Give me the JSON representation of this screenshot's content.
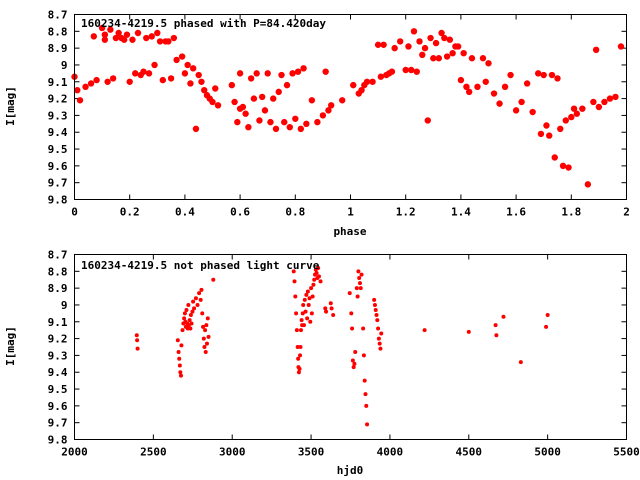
{
  "chart_data": [
    {
      "type": "scatter",
      "title": "160234-4219.5 phased with P=84.420day",
      "xlabel": "phase",
      "ylabel": "I[mag]",
      "xlim": [
        0,
        2
      ],
      "ylim": [
        9.8,
        8.7
      ],
      "y_inverted": true,
      "grid": false,
      "color": "#ff0000",
      "x_ticks": [
        "0",
        "0.2",
        "0.4",
        "0.6",
        "0.8",
        "1",
        "1.2",
        "1.4",
        "1.6",
        "1.8",
        "2"
      ],
      "y_ticks": [
        "8.7",
        "8.8",
        "8.9",
        "9",
        "9.1",
        "9.2",
        "9.3",
        "9.4",
        "9.5",
        "9.6",
        "9.7",
        "9.8"
      ],
      "points": [
        [
          0.0,
          9.07
        ],
        [
          0.01,
          9.15
        ],
        [
          0.02,
          9.21
        ],
        [
          0.04,
          9.13
        ],
        [
          0.06,
          9.11
        ],
        [
          0.07,
          8.83
        ],
        [
          0.08,
          9.09
        ],
        [
          0.1,
          8.78
        ],
        [
          0.11,
          8.82
        ],
        [
          0.11,
          8.85
        ],
        [
          0.12,
          9.1
        ],
        [
          0.13,
          8.79
        ],
        [
          0.14,
          9.08
        ],
        [
          0.15,
          8.84
        ],
        [
          0.16,
          8.81
        ],
        [
          0.17,
          8.84
        ],
        [
          0.18,
          8.85
        ],
        [
          0.19,
          8.82
        ],
        [
          0.2,
          9.1
        ],
        [
          0.21,
          8.85
        ],
        [
          0.22,
          9.05
        ],
        [
          0.23,
          8.81
        ],
        [
          0.24,
          9.06
        ],
        [
          0.25,
          9.04
        ],
        [
          0.26,
          8.84
        ],
        [
          0.27,
          9.05
        ],
        [
          0.28,
          8.83
        ],
        [
          0.29,
          9.0
        ],
        [
          0.3,
          8.81
        ],
        [
          0.31,
          8.86
        ],
        [
          0.32,
          9.09
        ],
        [
          0.33,
          8.86
        ],
        [
          0.34,
          8.86
        ],
        [
          0.35,
          9.08
        ],
        [
          0.36,
          8.84
        ],
        [
          0.37,
          8.97
        ],
        [
          0.39,
          8.95
        ],
        [
          0.4,
          9.05
        ],
        [
          0.41,
          9.0
        ],
        [
          0.42,
          9.11
        ],
        [
          0.43,
          9.02
        ],
        [
          0.44,
          9.38
        ],
        [
          0.45,
          9.06
        ],
        [
          0.46,
          9.1
        ],
        [
          0.47,
          9.15
        ],
        [
          0.48,
          9.18
        ],
        [
          0.49,
          9.2
        ],
        [
          0.5,
          9.22
        ],
        [
          0.51,
          9.14
        ],
        [
          0.52,
          9.24
        ],
        [
          0.57,
          9.12
        ],
        [
          0.58,
          9.22
        ],
        [
          0.59,
          9.34
        ],
        [
          0.6,
          9.05
        ],
        [
          0.6,
          9.26
        ],
        [
          0.61,
          9.25
        ],
        [
          0.62,
          9.29
        ],
        [
          0.63,
          9.37
        ],
        [
          0.64,
          9.08
        ],
        [
          0.65,
          9.2
        ],
        [
          0.66,
          9.05
        ],
        [
          0.67,
          9.33
        ],
        [
          0.68,
          9.19
        ],
        [
          0.69,
          9.27
        ],
        [
          0.7,
          9.05
        ],
        [
          0.71,
          9.34
        ],
        [
          0.72,
          9.2
        ],
        [
          0.73,
          9.38
        ],
        [
          0.74,
          9.16
        ],
        [
          0.75,
          9.06
        ],
        [
          0.76,
          9.34
        ],
        [
          0.77,
          9.12
        ],
        [
          0.78,
          9.37
        ],
        [
          0.79,
          9.05
        ],
        [
          0.8,
          9.32
        ],
        [
          0.81,
          9.04
        ],
        [
          0.82,
          9.38
        ],
        [
          0.83,
          9.02
        ],
        [
          0.84,
          9.35
        ],
        [
          0.86,
          9.21
        ],
        [
          0.88,
          9.34
        ],
        [
          0.9,
          9.3
        ],
        [
          0.91,
          9.04
        ],
        [
          0.92,
          9.27
        ],
        [
          0.93,
          9.24
        ],
        [
          0.97,
          9.21
        ],
        [
          1.01,
          9.12
        ],
        [
          1.03,
          9.17
        ],
        [
          1.04,
          9.15
        ],
        [
          1.05,
          9.12
        ],
        [
          1.06,
          9.1
        ],
        [
          1.08,
          9.1
        ],
        [
          1.1,
          8.88
        ],
        [
          1.11,
          9.07
        ],
        [
          1.12,
          8.88
        ],
        [
          1.13,
          9.06
        ],
        [
          1.14,
          9.05
        ],
        [
          1.15,
          9.04
        ],
        [
          1.16,
          8.9
        ],
        [
          1.18,
          8.86
        ],
        [
          1.2,
          9.03
        ],
        [
          1.21,
          8.89
        ],
        [
          1.22,
          9.03
        ],
        [
          1.23,
          8.8
        ],
        [
          1.24,
          9.04
        ],
        [
          1.25,
          8.86
        ],
        [
          1.26,
          8.94
        ],
        [
          1.27,
          8.9
        ],
        [
          1.28,
          9.33
        ],
        [
          1.29,
          8.84
        ],
        [
          1.3,
          8.96
        ],
        [
          1.31,
          8.87
        ],
        [
          1.32,
          8.96
        ],
        [
          1.33,
          8.81
        ],
        [
          1.34,
          8.84
        ],
        [
          1.35,
          8.95
        ],
        [
          1.36,
          8.85
        ],
        [
          1.37,
          8.93
        ],
        [
          1.38,
          8.89
        ],
        [
          1.39,
          8.89
        ],
        [
          1.4,
          9.09
        ],
        [
          1.41,
          8.93
        ],
        [
          1.42,
          9.13
        ],
        [
          1.43,
          9.16
        ],
        [
          1.44,
          8.96
        ],
        [
          1.46,
          9.13
        ],
        [
          1.48,
          8.96
        ],
        [
          1.49,
          9.1
        ],
        [
          1.5,
          8.99
        ],
        [
          1.52,
          9.17
        ],
        [
          1.54,
          9.23
        ],
        [
          1.56,
          9.13
        ],
        [
          1.58,
          9.06
        ],
        [
          1.6,
          9.27
        ],
        [
          1.62,
          9.22
        ],
        [
          1.64,
          9.11
        ],
        [
          1.66,
          9.28
        ],
        [
          1.68,
          9.05
        ],
        [
          1.69,
          9.41
        ],
        [
          1.7,
          9.06
        ],
        [
          1.71,
          9.36
        ],
        [
          1.72,
          9.42
        ],
        [
          1.73,
          9.06
        ],
        [
          1.74,
          9.55
        ],
        [
          1.75,
          9.08
        ],
        [
          1.76,
          9.38
        ],
        [
          1.77,
          9.6
        ],
        [
          1.78,
          9.33
        ],
        [
          1.79,
          9.61
        ],
        [
          1.8,
          9.31
        ],
        [
          1.81,
          9.26
        ],
        [
          1.82,
          9.29
        ],
        [
          1.84,
          9.26
        ],
        [
          1.86,
          9.71
        ],
        [
          1.88,
          9.22
        ],
        [
          1.89,
          8.91
        ],
        [
          1.9,
          9.25
        ],
        [
          1.92,
          9.22
        ],
        [
          1.94,
          9.2
        ],
        [
          1.96,
          9.19
        ],
        [
          1.98,
          8.89
        ]
      ]
    },
    {
      "type": "scatter",
      "title": "160234-4219.5 not phased light curve",
      "xlabel": "hjd0",
      "ylabel": "I[mag]",
      "xlim": [
        2000,
        5500
      ],
      "ylim": [
        9.8,
        8.7
      ],
      "y_inverted": true,
      "grid": false,
      "color": "#ff0000",
      "x_ticks": [
        "2000",
        "2500",
        "3000",
        "3500",
        "4000",
        "4500",
        "5000",
        "5500"
      ],
      "y_ticks": [
        "8.7",
        "8.8",
        "8.9",
        "9",
        "9.1",
        "9.2",
        "9.3",
        "9.4",
        "9.5",
        "9.6",
        "9.7",
        "9.8"
      ],
      "points": [
        [
          2395,
          9.18
        ],
        [
          2397,
          9.21
        ],
        [
          2400,
          9.26
        ],
        [
          2655,
          9.21
        ],
        [
          2660,
          9.28
        ],
        [
          2664,
          9.32
        ],
        [
          2668,
          9.36
        ],
        [
          2671,
          9.4
        ],
        [
          2675,
          9.42
        ],
        [
          2678,
          9.24
        ],
        [
          2685,
          9.15
        ],
        [
          2690,
          9.11
        ],
        [
          2695,
          9.08
        ],
        [
          2700,
          9.05
        ],
        [
          2703,
          9.1
        ],
        [
          2706,
          9.13
        ],
        [
          2710,
          9.03
        ],
        [
          2715,
          9.11
        ],
        [
          2718,
          9.14
        ],
        [
          2722,
          9.0
        ],
        [
          2725,
          9.12
        ],
        [
          2730,
          9.09
        ],
        [
          2735,
          9.14
        ],
        [
          2738,
          9.06
        ],
        [
          2742,
          9.11
        ],
        [
          2748,
          9.04
        ],
        [
          2752,
          8.98
        ],
        [
          2758,
          9.02
        ],
        [
          2770,
          8.96
        ],
        [
          2780,
          9.0
        ],
        [
          2790,
          8.93
        ],
        [
          2800,
          8.97
        ],
        [
          2805,
          8.91
        ],
        [
          2810,
          9.05
        ],
        [
          2815,
          9.13
        ],
        [
          2820,
          9.2
        ],
        [
          2824,
          9.25
        ],
        [
          2828,
          9.15
        ],
        [
          2832,
          9.28
        ],
        [
          2836,
          9.12
        ],
        [
          2840,
          9.23
        ],
        [
          2845,
          9.08
        ],
        [
          2850,
          9.19
        ],
        [
          2880,
          8.85
        ],
        [
          3390,
          8.8
        ],
        [
          3395,
          8.86
        ],
        [
          3400,
          8.95
        ],
        [
          3405,
          9.05
        ],
        [
          3410,
          9.15
        ],
        [
          3415,
          9.25
        ],
        [
          3418,
          9.32
        ],
        [
          3420,
          9.37
        ],
        [
          3423,
          9.4
        ],
        [
          3427,
          9.38
        ],
        [
          3430,
          9.3
        ],
        [
          3433,
          9.25
        ],
        [
          3436,
          9.15
        ],
        [
          3440,
          9.09
        ],
        [
          3443,
          9.12
        ],
        [
          3447,
          9.05
        ],
        [
          3450,
          9.0
        ],
        [
          3455,
          9.12
        ],
        [
          3460,
          8.97
        ],
        [
          3465,
          9.04
        ],
        [
          3470,
          8.94
        ],
        [
          3475,
          9.08
        ],
        [
          3480,
          8.92
        ],
        [
          3485,
          9.0
        ],
        [
          3490,
          8.96
        ],
        [
          3495,
          9.1
        ],
        [
          3500,
          8.9
        ],
        [
          3505,
          9.05
        ],
        [
          3510,
          8.95
        ],
        [
          3515,
          8.88
        ],
        [
          3520,
          8.85
        ],
        [
          3525,
          8.82
        ],
        [
          3530,
          8.79
        ],
        [
          3535,
          8.81
        ],
        [
          3540,
          8.84
        ],
        [
          3545,
          8.78
        ],
        [
          3550,
          8.83
        ],
        [
          3560,
          8.86
        ],
        [
          3590,
          9.02
        ],
        [
          3595,
          9.04
        ],
        [
          3625,
          8.99
        ],
        [
          3630,
          9.02
        ],
        [
          3640,
          9.06
        ],
        [
          3745,
          8.93
        ],
        [
          3755,
          9.05
        ],
        [
          3760,
          9.14
        ],
        [
          3765,
          9.33
        ],
        [
          3770,
          9.37
        ],
        [
          3775,
          9.35
        ],
        [
          3780,
          9.28
        ],
        [
          3790,
          8.9
        ],
        [
          3795,
          8.95
        ],
        [
          3800,
          8.8
        ],
        [
          3805,
          8.84
        ],
        [
          3810,
          8.87
        ],
        [
          3815,
          8.9
        ],
        [
          3820,
          8.82
        ],
        [
          3830,
          9.14
        ],
        [
          3835,
          9.3
        ],
        [
          3840,
          9.45
        ],
        [
          3845,
          9.53
        ],
        [
          3850,
          9.6
        ],
        [
          3855,
          9.71
        ],
        [
          3900,
          8.97
        ],
        [
          3905,
          9.0
        ],
        [
          3910,
          9.03
        ],
        [
          3915,
          9.06
        ],
        [
          3920,
          9.09
        ],
        [
          3925,
          9.14
        ],
        [
          3930,
          9.2
        ],
        [
          3935,
          9.23
        ],
        [
          3940,
          9.26
        ],
        [
          3945,
          9.17
        ],
        [
          4220,
          9.15
        ],
        [
          4500,
          9.16
        ],
        [
          4670,
          9.12
        ],
        [
          4675,
          9.18
        ],
        [
          4720,
          9.07
        ],
        [
          4830,
          9.34
        ],
        [
          4990,
          9.13
        ],
        [
          5000,
          9.06
        ]
      ]
    }
  ]
}
